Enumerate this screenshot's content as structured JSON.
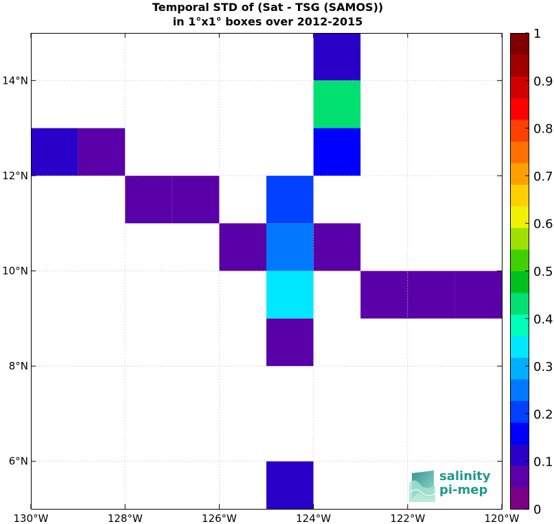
{
  "chart_data": {
    "type": "heatmap",
    "title_line1": "Temporal STD of (Sat - TSG (SAMOS))",
    "title_line2": "in 1°x1° boxes over 2012-2015",
    "x_ticks": [
      {
        "value": -130,
        "label": "130°W"
      },
      {
        "value": -128,
        "label": "128°W"
      },
      {
        "value": -126,
        "label": "126°W"
      },
      {
        "value": -124,
        "label": "124°W"
      },
      {
        "value": -122,
        "label": "122°W"
      },
      {
        "value": -120,
        "label": "120°W"
      }
    ],
    "y_ticks": [
      {
        "value": 6,
        "label": "6°N"
      },
      {
        "value": 8,
        "label": "8°N"
      },
      {
        "value": 10,
        "label": "10°N"
      },
      {
        "value": 12,
        "label": "12°N"
      },
      {
        "value": 14,
        "label": "14°N"
      }
    ],
    "xlim": [
      -130,
      -120
    ],
    "ylim": [
      5,
      15
    ],
    "grid": true,
    "colorbar": {
      "range": [
        0,
        1
      ],
      "ticks": [
        "0",
        "0.1",
        "0.2",
        "0.3",
        "0.4",
        "0.5",
        "0.6",
        "0.7",
        "0.8",
        "0.9",
        "1"
      ],
      "colors": [
        "#7b0084",
        "#5a00a8",
        "#2a00c8",
        "#0000ff",
        "#0040ff",
        "#0078ff",
        "#00b0ff",
        "#00e8ff",
        "#00ffbb",
        "#00e070",
        "#00c020",
        "#40d000",
        "#a0e000",
        "#f0f000",
        "#ffd000",
        "#ffa000",
        "#ff7000",
        "#ff4000",
        "#ff0000",
        "#d00000",
        "#a00000",
        "#800000"
      ]
    },
    "cells": [
      {
        "lon": -124,
        "lat": 14,
        "value": 0.12
      },
      {
        "lon": -124,
        "lat": 13,
        "value": 0.42
      },
      {
        "lon": -124,
        "lat": 12,
        "value": 0.15
      },
      {
        "lon": -130,
        "lat": 12,
        "value": 0.1
      },
      {
        "lon": -129,
        "lat": 12,
        "value": 0.05
      },
      {
        "lon": -128,
        "lat": 11,
        "value": 0.05
      },
      {
        "lon": -127,
        "lat": 11,
        "value": 0.05
      },
      {
        "lon": -125,
        "lat": 11,
        "value": 0.2
      },
      {
        "lon": -126,
        "lat": 10,
        "value": 0.05
      },
      {
        "lon": -125,
        "lat": 10,
        "value": 0.27
      },
      {
        "lon": -124,
        "lat": 10,
        "value": 0.05
      },
      {
        "lon": -125,
        "lat": 9,
        "value": 0.32
      },
      {
        "lon": -123,
        "lat": 9,
        "value": 0.05
      },
      {
        "lon": -122,
        "lat": 9,
        "value": 0.05
      },
      {
        "lon": -121,
        "lat": 9,
        "value": 0.05
      },
      {
        "lon": -125,
        "lat": 8,
        "value": 0.05
      },
      {
        "lon": -125,
        "lat": 5,
        "value": 0.1
      }
    ]
  },
  "logo": {
    "line1": "salinity",
    "line2": "pi-mep"
  }
}
